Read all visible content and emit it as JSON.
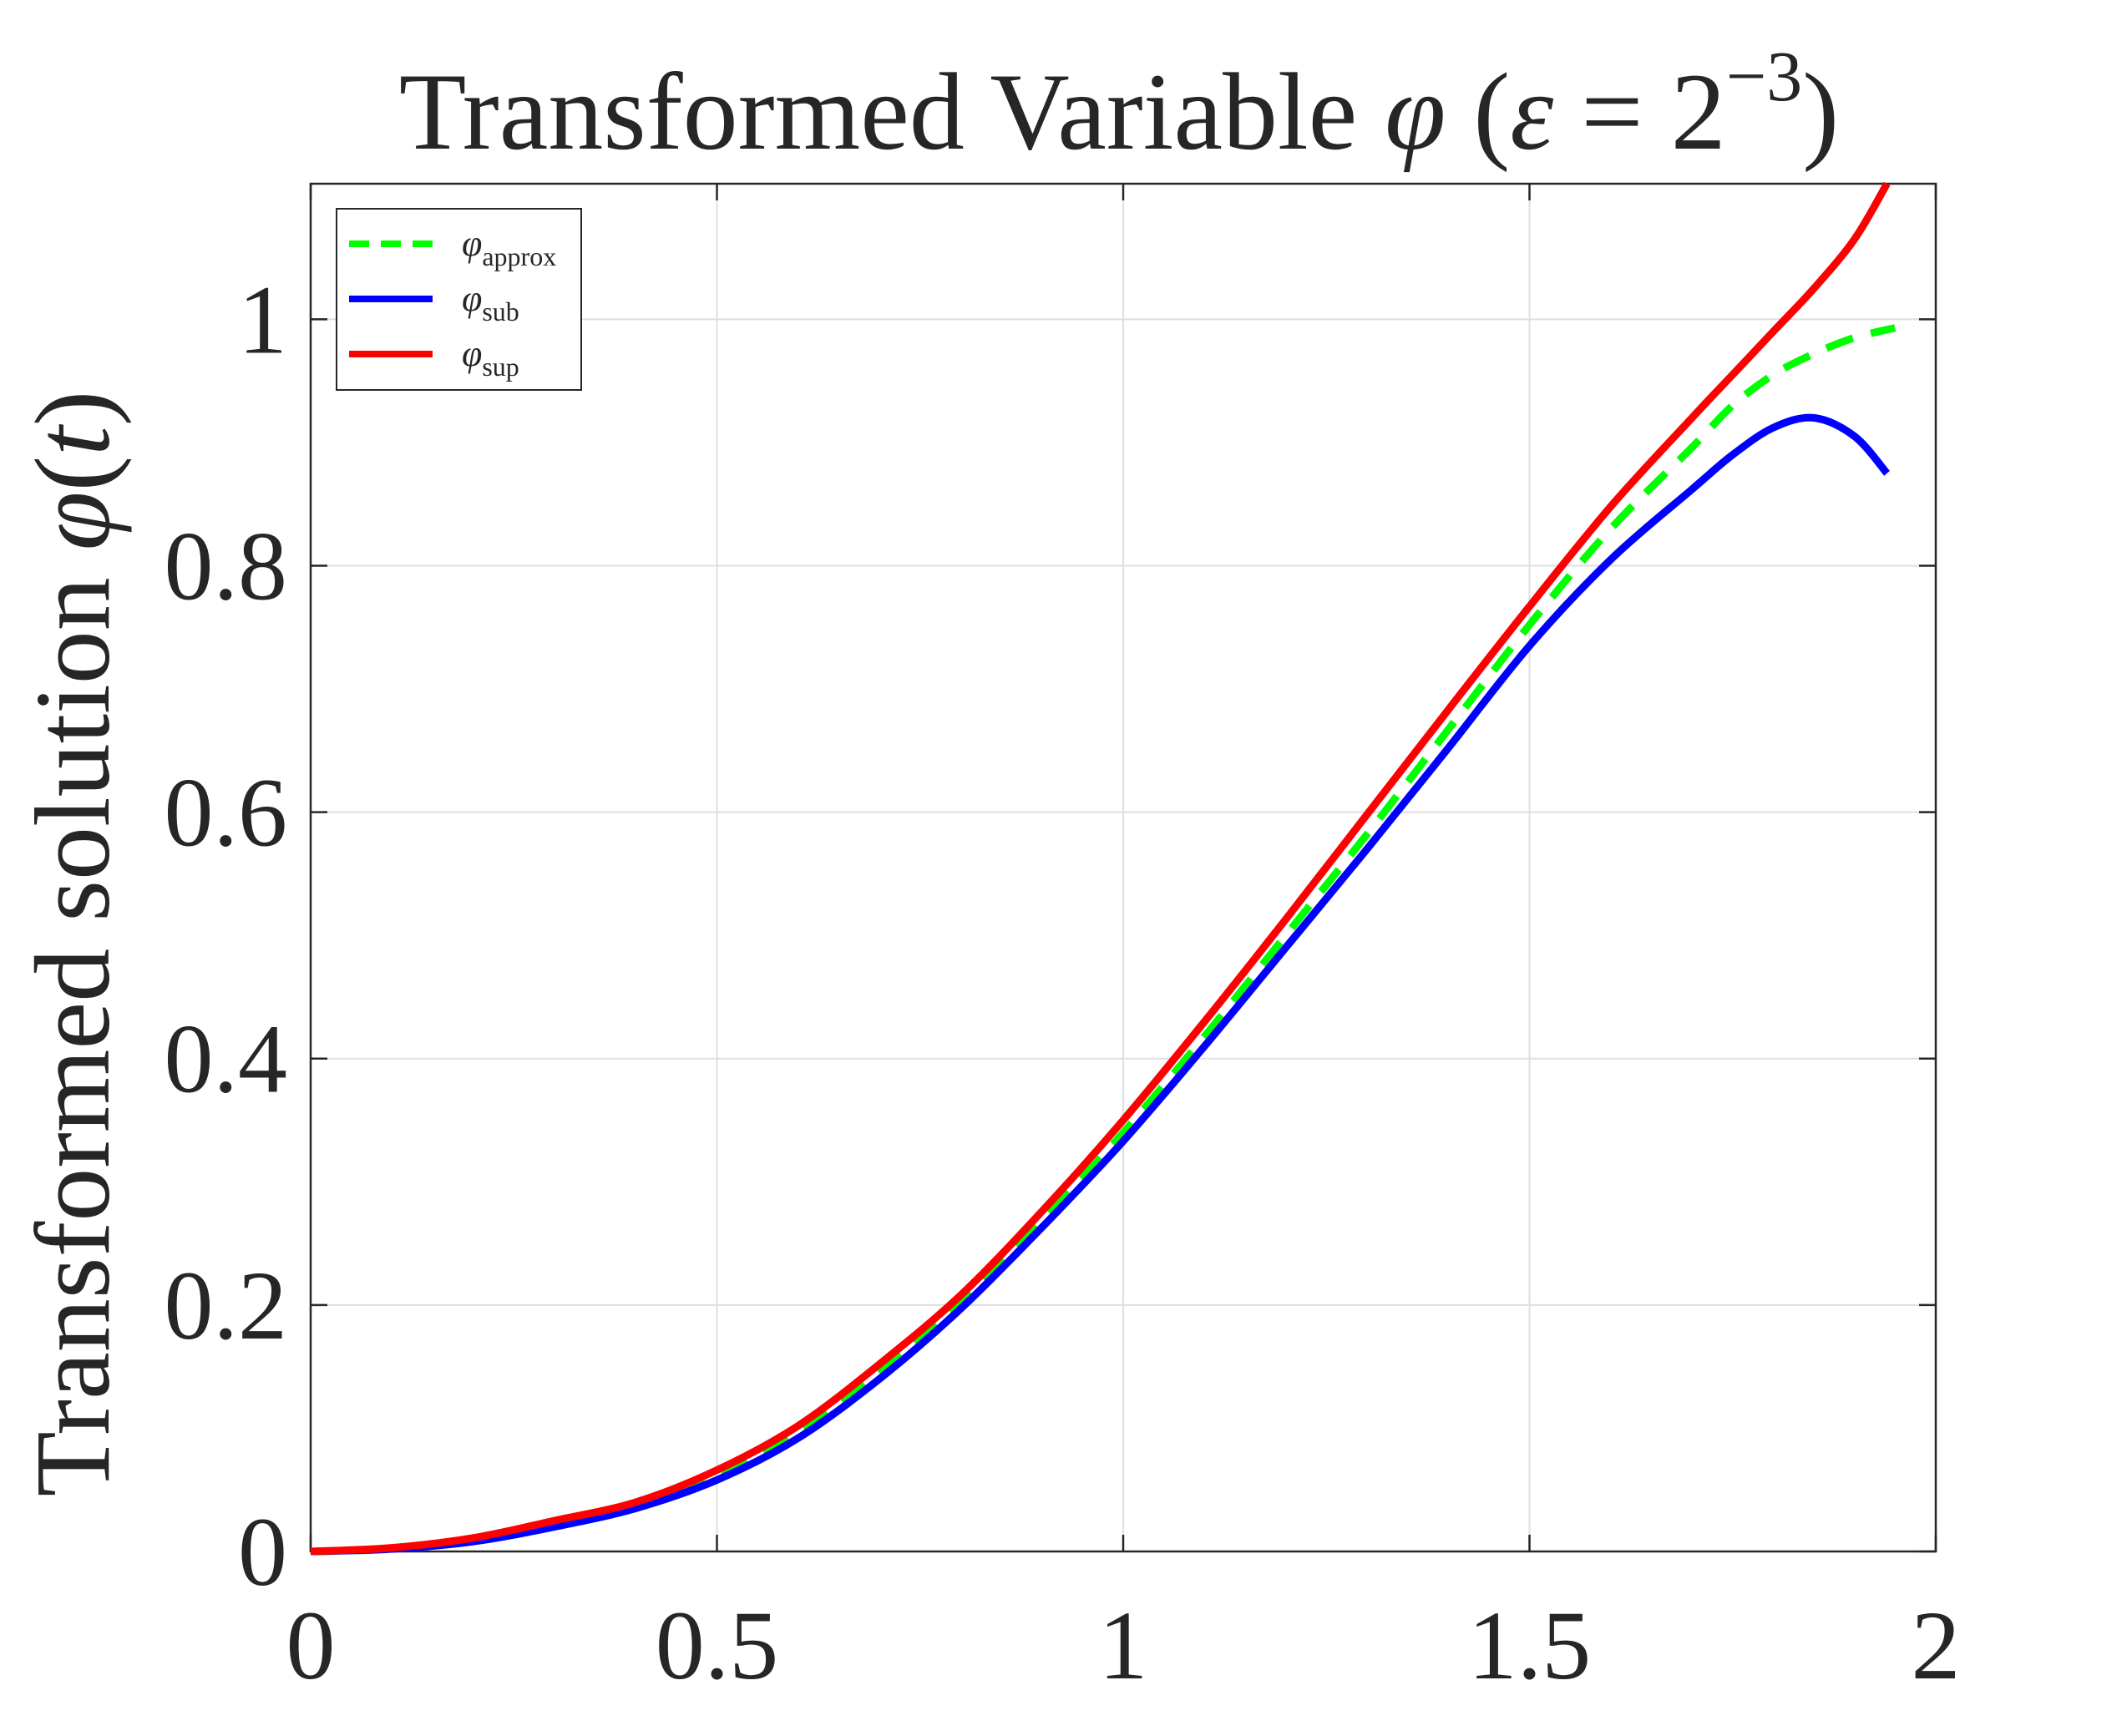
{
  "chart_data": {
    "type": "line",
    "title": {
      "prefix": "Transformed Variable ",
      "symbol": "φ",
      "open": " (",
      "epsilon": "ε",
      "equals": " = 2",
      "exponent": "−3",
      "close": ")"
    },
    "ylabel": {
      "prefix": "Transformed solution ",
      "symbol": "φ",
      "open": "(",
      "arg": "t",
      "close": ")"
    },
    "xlabel": "",
    "xlim": [
      0,
      2
    ],
    "ylim": [
      0,
      1.11
    ],
    "xticks": [
      0,
      0.5,
      1,
      1.5,
      2
    ],
    "xtick_labels": [
      "0",
      "0.5",
      "1",
      "1.5",
      "2"
    ],
    "yticks": [
      0,
      0.2,
      0.4,
      0.6,
      0.8,
      1
    ],
    "ytick_labels": [
      "0",
      "0.2",
      "0.4",
      "0.6",
      "0.8",
      "1"
    ],
    "grid": true,
    "legend_position": "top-left",
    "series": [
      {
        "name": "φ",
        "subscript": "approx",
        "color": "#00ff00",
        "style": "dashed",
        "x": [
          0,
          0.1,
          0.2,
          0.3,
          0.4,
          0.5,
          0.6,
          0.7,
          0.8,
          0.9,
          1.0,
          1.1,
          1.2,
          1.3,
          1.4,
          1.5,
          1.6,
          1.7,
          1.75,
          1.8,
          1.85,
          1.9,
          1.95
        ],
        "y": [
          0,
          0.002,
          0.01,
          0.024,
          0.038,
          0.062,
          0.098,
          0.147,
          0.203,
          0.268,
          0.34,
          0.418,
          0.5,
          0.582,
          0.667,
          0.752,
          0.83,
          0.896,
          0.93,
          0.955,
          0.972,
          0.985,
          0.993
        ]
      },
      {
        "name": "φ",
        "subscript": "sub",
        "color": "#0000ff",
        "style": "solid",
        "x": [
          0,
          0.1,
          0.2,
          0.3,
          0.4,
          0.5,
          0.6,
          0.7,
          0.8,
          0.9,
          1.0,
          1.1,
          1.2,
          1.3,
          1.4,
          1.5,
          1.6,
          1.7,
          1.75,
          1.8,
          1.85,
          1.9,
          1.94
        ],
        "y": [
          0,
          0.002,
          0.008,
          0.02,
          0.035,
          0.058,
          0.092,
          0.14,
          0.197,
          0.263,
          0.333,
          0.41,
          0.49,
          0.57,
          0.652,
          0.735,
          0.805,
          0.862,
          0.89,
          0.912,
          0.92,
          0.905,
          0.875
        ]
      },
      {
        "name": "φ",
        "subscript": "sup",
        "color": "#ff0000",
        "style": "solid",
        "x": [
          0,
          0.1,
          0.2,
          0.3,
          0.4,
          0.5,
          0.6,
          0.7,
          0.8,
          0.9,
          1.0,
          1.1,
          1.2,
          1.3,
          1.4,
          1.5,
          1.6,
          1.7,
          1.75,
          1.8,
          1.85,
          1.9,
          1.94
        ],
        "y": [
          0,
          0.003,
          0.011,
          0.025,
          0.04,
          0.066,
          0.102,
          0.152,
          0.208,
          0.276,
          0.35,
          0.43,
          0.513,
          0.598,
          0.683,
          0.767,
          0.848,
          0.92,
          0.955,
          0.99,
          1.025,
          1.065,
          1.11
        ]
      }
    ]
  }
}
